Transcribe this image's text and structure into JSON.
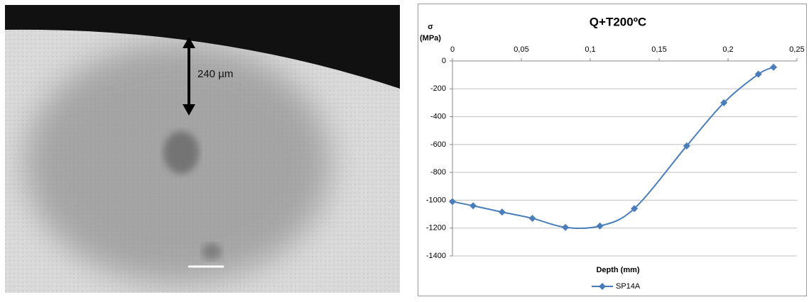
{
  "micrograph": {
    "annotation": "240 µm"
  },
  "chart_data": {
    "type": "line",
    "title": "Q+T200ºC",
    "ylabel": [
      "σ",
      "(MPa)"
    ],
    "xlabel": "Depth (mm)",
    "x": [
      0,
      0.015,
      0.036,
      0.058,
      0.082,
      0.107,
      0.132,
      0.17,
      0.197,
      0.222,
      0.233
    ],
    "series": [
      {
        "name": "SP14A",
        "color": "#4a7ebb",
        "values": [
          -1010,
          -1040,
          -1085,
          -1130,
          -1195,
          -1185,
          -1060,
          -610,
          -300,
          -95,
          -45
        ]
      }
    ],
    "xlim": [
      0,
      0.25
    ],
    "xticks": [
      0,
      {
        "value": 0.05,
        "label": "0,05"
      },
      {
        "value": 0.1,
        "label": "0,1"
      },
      {
        "value": 0.15,
        "label": "0,15"
      },
      {
        "value": 0.2,
        "label": "0,2"
      },
      {
        "value": 0.25,
        "label": "0,25"
      }
    ],
    "ylim": [
      -1400,
      0
    ],
    "yticks": [
      0,
      -200,
      -400,
      -600,
      -800,
      -1000,
      -1200,
      -1400
    ],
    "grid": true,
    "legend": "bottom",
    "smooth": true
  }
}
